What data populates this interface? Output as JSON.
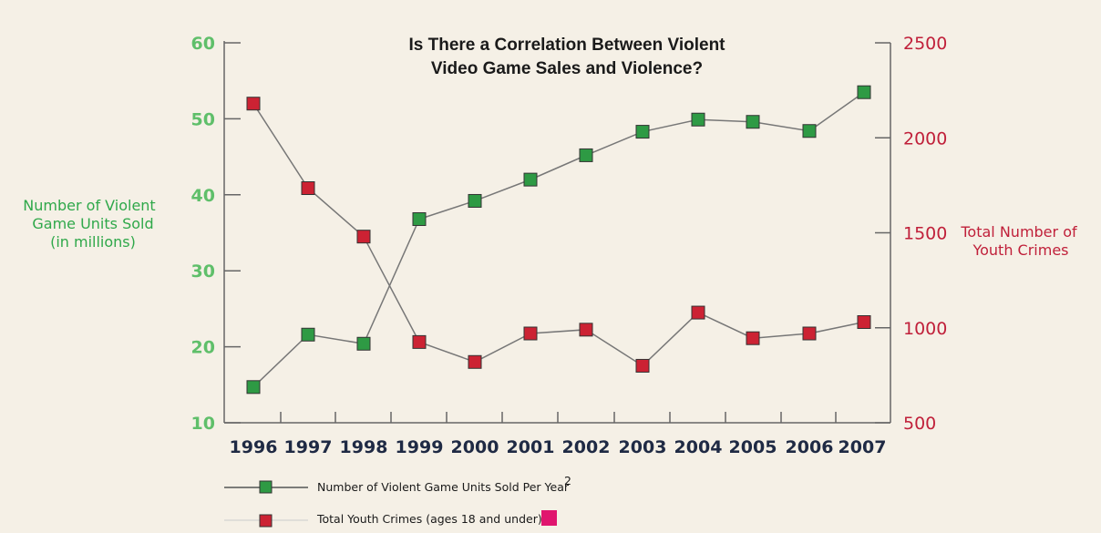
{
  "chart_data": {
    "type": "line",
    "title_lines": [
      "Is There a Correlation Between Violent",
      "Video Game Sales and Violence?"
    ],
    "x": [
      "1996",
      "1997",
      "1998",
      "1999",
      "2000",
      "2001",
      "2002",
      "2003",
      "2004",
      "2005",
      "2006",
      "2007"
    ],
    "y_left": {
      "label_lines": [
        "Number of Violent",
        "Game Units Sold",
        "(in millions)"
      ],
      "ylim": [
        10,
        60
      ],
      "ticks": [
        10,
        20,
        30,
        40,
        50,
        60
      ],
      "color": "#2fa84a"
    },
    "y_right": {
      "label_lines": [
        "Total Number of",
        "Youth Crimes"
      ],
      "ylim": [
        500,
        2500
      ],
      "ticks": [
        500,
        1000,
        1500,
        2000,
        2500
      ],
      "color": "#c0203a"
    },
    "series": [
      {
        "name": "Number of Violent Game Units Sold Per Year",
        "name_superscript": "2",
        "axis": "left",
        "marker_color": "#2e9a44",
        "line_color": "#777777",
        "values": [
          14.7,
          21.6,
          20.4,
          36.8,
          39.2,
          42.0,
          45.2,
          48.3,
          49.9,
          49.6,
          48.4,
          53.5
        ]
      },
      {
        "name": "Total Youth Crimes (ages 18 and under)",
        "axis": "right",
        "marker_color": "#cc2233",
        "line_color": "#777777",
        "values": [
          2180,
          1735,
          1480,
          925,
          820,
          970,
          990,
          800,
          1080,
          945,
          970,
          1030
        ]
      }
    ],
    "legend": {
      "position": "bottom-left",
      "extra_swatch_color": "#e0156e"
    },
    "grid": false
  }
}
